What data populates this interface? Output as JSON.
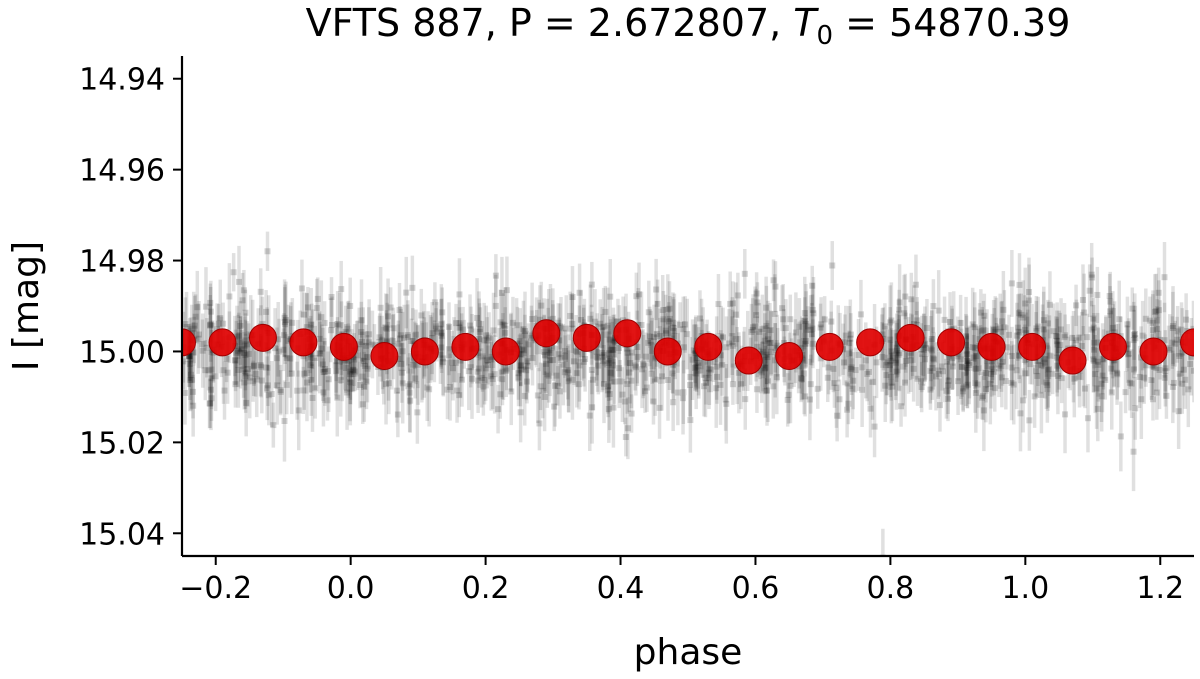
{
  "chart_data": {
    "type": "scatter",
    "title": {
      "prefix": "VFTS 887, P = 2.672807, ",
      "t_symbol": "T",
      "t_subscript": "0",
      "suffix": " = 54870.39"
    },
    "xlabel": "phase",
    "ylabel": "I [mag]",
    "xlim": [
      -0.25,
      1.25
    ],
    "ylim": [
      15.045,
      14.935
    ],
    "y_inverted": true,
    "grid": false,
    "xticks": [
      -0.2,
      0.0,
      0.2,
      0.4,
      0.6,
      0.8,
      1.0,
      1.2
    ],
    "xtick_labels": [
      "−0.2",
      "0.0",
      "0.2",
      "0.4",
      "0.6",
      "0.8",
      "1.0",
      "1.2"
    ],
    "yticks": [
      14.94,
      14.96,
      14.98,
      15.0,
      15.02,
      15.04
    ],
    "ytick_labels": [
      "14.94",
      "14.96",
      "14.98",
      "15.00",
      "15.02",
      "15.04"
    ],
    "series": [
      {
        "kind": "raw-measurements-with-errorbars",
        "color": "#000000",
        "opacity": 0.12,
        "count_estimate": 1200,
        "center_mag": 15.0,
        "scatter_mag": 0.006,
        "typical_error_mag": 0.006
      },
      {
        "kind": "binned-means",
        "color": "#e00000",
        "x": [
          -0.25,
          -0.19,
          -0.13,
          -0.07,
          -0.01,
          0.05,
          0.11,
          0.17,
          0.23,
          0.29,
          0.35,
          0.41,
          0.47,
          0.53,
          0.59,
          0.65,
          0.71,
          0.77,
          0.83,
          0.89,
          0.95,
          1.01,
          1.07,
          1.13,
          1.19,
          1.25
        ],
        "y": [
          14.998,
          14.998,
          14.997,
          14.998,
          14.999,
          15.001,
          15.0,
          14.999,
          15.0,
          14.996,
          14.997,
          14.996,
          15.0,
          14.999,
          15.002,
          15.001,
          14.999,
          14.998,
          14.997,
          14.998,
          14.999,
          14.999,
          15.002,
          14.999,
          15.0,
          14.998
        ]
      }
    ]
  }
}
